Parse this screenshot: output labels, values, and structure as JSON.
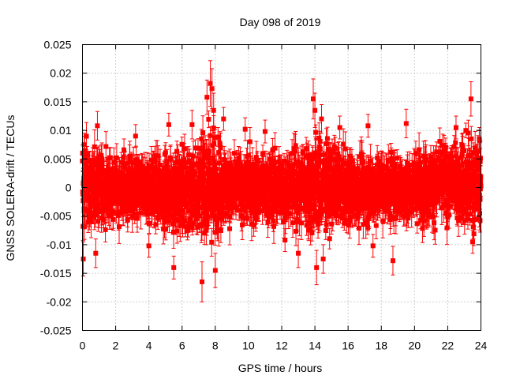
{
  "chart_data": {
    "type": "scatter",
    "title": "Day 098 of 2019",
    "xlabel": "GPS time / hours",
    "ylabel": "GNSS SOLERA-drift / TECUs",
    "xlim": [
      0,
      24
    ],
    "ylim": [
      -0.025,
      0.025
    ],
    "x_ticks": [
      0,
      2,
      4,
      6,
      8,
      10,
      12,
      14,
      16,
      18,
      20,
      22,
      24
    ],
    "y_ticks": [
      -0.025,
      -0.02,
      -0.015,
      -0.01,
      -0.005,
      0,
      0.005,
      0.01,
      0.015,
      0.02,
      0.025
    ],
    "y_tick_labels": [
      "-0.025",
      "-0.02",
      "-0.015",
      "-0.01",
      "-0.005",
      "0",
      "0.005",
      "0.01",
      "0.015",
      "0.02",
      "0.025"
    ],
    "grid": true,
    "series_color": "#ff0000",
    "marker": "square",
    "error_bars": true,
    "envelope": {
      "x": [
        0,
        2,
        4,
        6,
        7,
        7.6,
        8,
        9,
        10,
        12,
        13,
        14,
        15,
        16,
        18,
        20,
        22,
        23.5,
        24
      ],
      "upper": [
        0.01,
        0.007,
        0.007,
        0.009,
        0.011,
        0.016,
        0.011,
        0.009,
        0.009,
        0.008,
        0.009,
        0.013,
        0.01,
        0.008,
        0.008,
        0.008,
        0.01,
        0.013,
        0.009
      ],
      "lower": [
        -0.01,
        -0.007,
        -0.008,
        -0.01,
        -0.011,
        -0.014,
        -0.011,
        -0.009,
        -0.009,
        -0.008,
        -0.009,
        -0.012,
        -0.01,
        -0.008,
        -0.008,
        -0.008,
        -0.008,
        -0.011,
        -0.008
      ]
    },
    "notable_points": [
      {
        "x": 0.05,
        "y": -0.0125,
        "err": 0.003
      },
      {
        "x": 0.1,
        "y": 0.0075,
        "err": 0.002
      },
      {
        "x": 0.8,
        "y": -0.0115,
        "err": 0.0025
      },
      {
        "x": 0.9,
        "y": 0.0108,
        "err": 0.0025
      },
      {
        "x": 2.5,
        "y": 0.0065,
        "err": 0.002
      },
      {
        "x": 3.2,
        "y": 0.009,
        "err": 0.002
      },
      {
        "x": 4.0,
        "y": -0.0102,
        "err": 0.002
      },
      {
        "x": 5.5,
        "y": -0.014,
        "err": 0.002
      },
      {
        "x": 5.2,
        "y": 0.011,
        "err": 0.002
      },
      {
        "x": 6.6,
        "y": 0.011,
        "err": 0.0025
      },
      {
        "x": 7.2,
        "y": -0.0165,
        "err": 0.0035
      },
      {
        "x": 7.5,
        "y": 0.0158,
        "err": 0.003
      },
      {
        "x": 7.7,
        "y": 0.0182,
        "err": 0.004
      },
      {
        "x": 7.8,
        "y": 0.0173,
        "err": 0.0035
      },
      {
        "x": 7.9,
        "y": 0.0135,
        "err": 0.003
      },
      {
        "x": 8.5,
        "y": 0.012,
        "err": 0.002
      },
      {
        "x": 8.0,
        "y": -0.0145,
        "err": 0.003
      },
      {
        "x": 9.8,
        "y": 0.0102,
        "err": 0.002
      },
      {
        "x": 11.0,
        "y": 0.0098,
        "err": 0.002
      },
      {
        "x": 12.2,
        "y": -0.0092,
        "err": 0.002
      },
      {
        "x": 13.0,
        "y": -0.0115,
        "err": 0.0025
      },
      {
        "x": 13.9,
        "y": 0.0155,
        "err": 0.0035
      },
      {
        "x": 14.0,
        "y": 0.0135,
        "err": 0.003
      },
      {
        "x": 14.1,
        "y": -0.014,
        "err": 0.003
      },
      {
        "x": 14.5,
        "y": -0.0125,
        "err": 0.0025
      },
      {
        "x": 14.4,
        "y": 0.012,
        "err": 0.0025
      },
      {
        "x": 15.5,
        "y": 0.0105,
        "err": 0.002
      },
      {
        "x": 17.5,
        "y": -0.0102,
        "err": 0.002
      },
      {
        "x": 17.2,
        "y": 0.0108,
        "err": 0.002
      },
      {
        "x": 18.7,
        "y": -0.0128,
        "err": 0.0025
      },
      {
        "x": 19.5,
        "y": 0.0112,
        "err": 0.0025
      },
      {
        "x": 22.5,
        "y": 0.0105,
        "err": 0.002
      },
      {
        "x": 23.4,
        "y": 0.0155,
        "err": 0.003
      },
      {
        "x": 23.5,
        "y": -0.0095,
        "err": 0.002
      },
      {
        "x": 23.9,
        "y": 0.0085,
        "err": 0.002
      },
      {
        "x": 23.95,
        "y": -0.0058,
        "err": 0.002
      }
    ],
    "generated_points": 2900
  }
}
